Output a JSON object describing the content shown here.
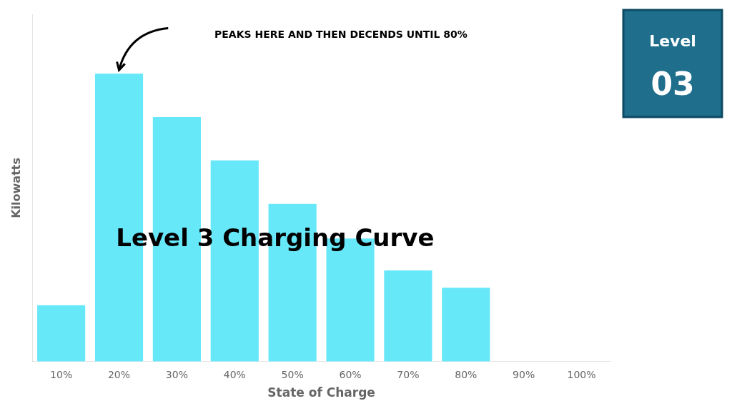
{
  "chart_data": {
    "type": "bar",
    "title": "Level 3 Charging Curve",
    "xlabel": "State of Charge",
    "ylabel": "Kilowatts",
    "annotations": [
      "PEAKS HERE AND THEN DECENDS UNTIL 80%",
      "Level",
      "03"
    ],
    "categories": [
      "10%",
      "20%",
      "30%",
      "40%",
      "50%",
      "60%",
      "70%",
      "80%",
      "90%",
      "100%"
    ],
    "values": [
      2.0,
      10.0,
      8.5,
      7.0,
      5.5,
      4.3,
      3.2,
      2.6,
      0,
      0
    ],
    "color": "#67E8F9",
    "ylim": [
      0,
      12.0
    ],
    "tick_labels": "x",
    "grid": false
  }
}
